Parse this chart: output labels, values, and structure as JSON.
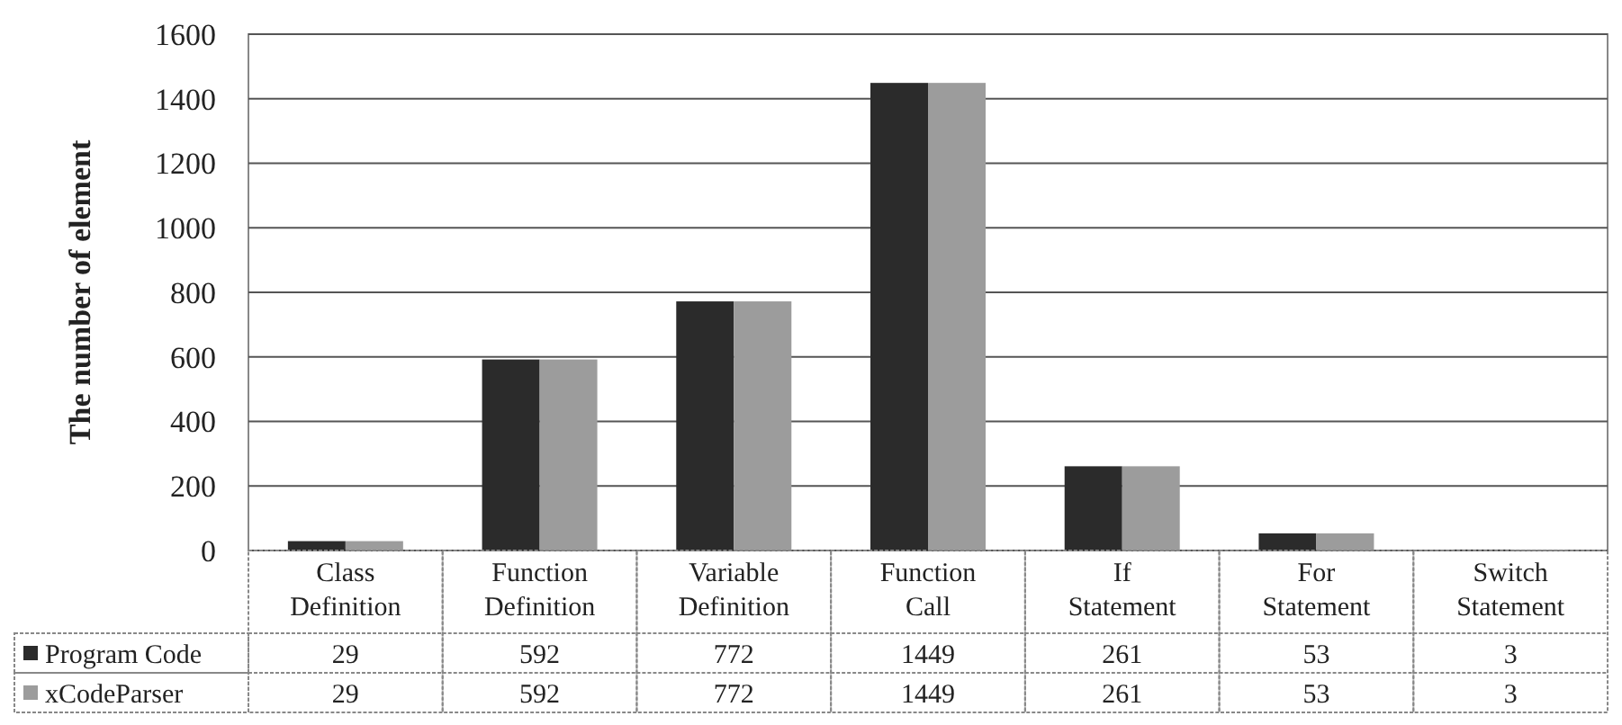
{
  "chart_data": {
    "type": "bar",
    "ylabel": "The number of element",
    "categories": [
      "Class Definition",
      "Function Definition",
      "Variable Definition",
      "Function Call",
      "If Statement",
      "For Statement",
      "Switch Statement"
    ],
    "series": [
      {
        "name": "Program Code",
        "color": "#2b2b2b",
        "values": [
          29,
          592,
          772,
          1449,
          261,
          53,
          3
        ]
      },
      {
        "name": "xCodeParser",
        "color": "#9c9c9c",
        "values": [
          29,
          592,
          772,
          1449,
          261,
          53,
          3
        ]
      }
    ],
    "ylim": [
      0,
      1600
    ],
    "yticks": [
      0,
      200,
      400,
      600,
      800,
      1000,
      1200,
      1400,
      1600
    ],
    "grid": "y",
    "data_labels": true,
    "legend": "bottom"
  }
}
